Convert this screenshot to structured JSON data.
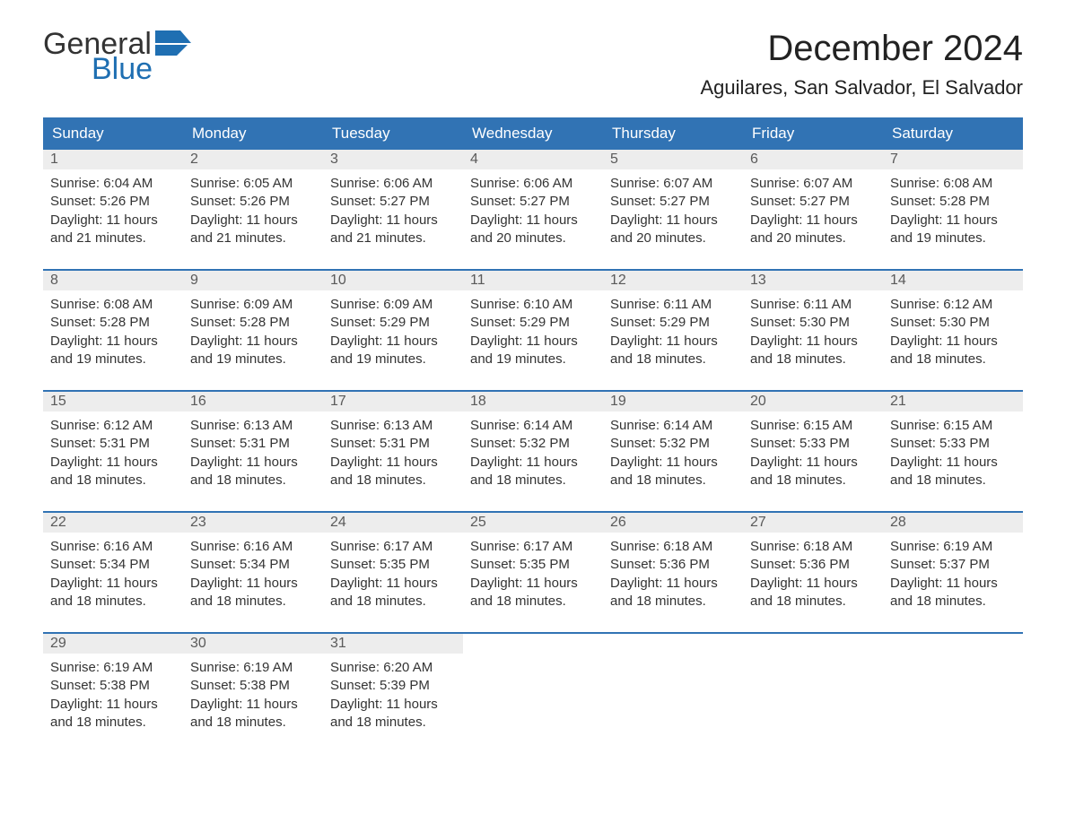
{
  "logo": {
    "text_general": "General",
    "text_blue": "Blue",
    "flag_color": "#1f6fb2"
  },
  "title": "December 2024",
  "location": "Aguilares, San Salvador, El Salvador",
  "calendar": {
    "columns": [
      "Sunday",
      "Monday",
      "Tuesday",
      "Wednesday",
      "Thursday",
      "Friday",
      "Saturday"
    ],
    "header_bg": "#3173b4",
    "header_fg": "#ffffff",
    "row_border_color": "#3173b4",
    "daynum_bg": "#ededed",
    "daynum_fg": "#5a5a5a",
    "text_color": "#333333",
    "sunrise_label": "Sunrise:",
    "sunset_label": "Sunset:",
    "daylight_label": "Daylight:",
    "days": [
      {
        "n": "1",
        "sunrise": "6:04 AM",
        "sunset": "5:26 PM",
        "daylight": "11 hours and 21 minutes."
      },
      {
        "n": "2",
        "sunrise": "6:05 AM",
        "sunset": "5:26 PM",
        "daylight": "11 hours and 21 minutes."
      },
      {
        "n": "3",
        "sunrise": "6:06 AM",
        "sunset": "5:27 PM",
        "daylight": "11 hours and 21 minutes."
      },
      {
        "n": "4",
        "sunrise": "6:06 AM",
        "sunset": "5:27 PM",
        "daylight": "11 hours and 20 minutes."
      },
      {
        "n": "5",
        "sunrise": "6:07 AM",
        "sunset": "5:27 PM",
        "daylight": "11 hours and 20 minutes."
      },
      {
        "n": "6",
        "sunrise": "6:07 AM",
        "sunset": "5:27 PM",
        "daylight": "11 hours and 20 minutes."
      },
      {
        "n": "7",
        "sunrise": "6:08 AM",
        "sunset": "5:28 PM",
        "daylight": "11 hours and 19 minutes."
      },
      {
        "n": "8",
        "sunrise": "6:08 AM",
        "sunset": "5:28 PM",
        "daylight": "11 hours and 19 minutes."
      },
      {
        "n": "9",
        "sunrise": "6:09 AM",
        "sunset": "5:28 PM",
        "daylight": "11 hours and 19 minutes."
      },
      {
        "n": "10",
        "sunrise": "6:09 AM",
        "sunset": "5:29 PM",
        "daylight": "11 hours and 19 minutes."
      },
      {
        "n": "11",
        "sunrise": "6:10 AM",
        "sunset": "5:29 PM",
        "daylight": "11 hours and 19 minutes."
      },
      {
        "n": "12",
        "sunrise": "6:11 AM",
        "sunset": "5:29 PM",
        "daylight": "11 hours and 18 minutes."
      },
      {
        "n": "13",
        "sunrise": "6:11 AM",
        "sunset": "5:30 PM",
        "daylight": "11 hours and 18 minutes."
      },
      {
        "n": "14",
        "sunrise": "6:12 AM",
        "sunset": "5:30 PM",
        "daylight": "11 hours and 18 minutes."
      },
      {
        "n": "15",
        "sunrise": "6:12 AM",
        "sunset": "5:31 PM",
        "daylight": "11 hours and 18 minutes."
      },
      {
        "n": "16",
        "sunrise": "6:13 AM",
        "sunset": "5:31 PM",
        "daylight": "11 hours and 18 minutes."
      },
      {
        "n": "17",
        "sunrise": "6:13 AM",
        "sunset": "5:31 PM",
        "daylight": "11 hours and 18 minutes."
      },
      {
        "n": "18",
        "sunrise": "6:14 AM",
        "sunset": "5:32 PM",
        "daylight": "11 hours and 18 minutes."
      },
      {
        "n": "19",
        "sunrise": "6:14 AM",
        "sunset": "5:32 PM",
        "daylight": "11 hours and 18 minutes."
      },
      {
        "n": "20",
        "sunrise": "6:15 AM",
        "sunset": "5:33 PM",
        "daylight": "11 hours and 18 minutes."
      },
      {
        "n": "21",
        "sunrise": "6:15 AM",
        "sunset": "5:33 PM",
        "daylight": "11 hours and 18 minutes."
      },
      {
        "n": "22",
        "sunrise": "6:16 AM",
        "sunset": "5:34 PM",
        "daylight": "11 hours and 18 minutes."
      },
      {
        "n": "23",
        "sunrise": "6:16 AM",
        "sunset": "5:34 PM",
        "daylight": "11 hours and 18 minutes."
      },
      {
        "n": "24",
        "sunrise": "6:17 AM",
        "sunset": "5:35 PM",
        "daylight": "11 hours and 18 minutes."
      },
      {
        "n": "25",
        "sunrise": "6:17 AM",
        "sunset": "5:35 PM",
        "daylight": "11 hours and 18 minutes."
      },
      {
        "n": "26",
        "sunrise": "6:18 AM",
        "sunset": "5:36 PM",
        "daylight": "11 hours and 18 minutes."
      },
      {
        "n": "27",
        "sunrise": "6:18 AM",
        "sunset": "5:36 PM",
        "daylight": "11 hours and 18 minutes."
      },
      {
        "n": "28",
        "sunrise": "6:19 AM",
        "sunset": "5:37 PM",
        "daylight": "11 hours and 18 minutes."
      },
      {
        "n": "29",
        "sunrise": "6:19 AM",
        "sunset": "5:38 PM",
        "daylight": "11 hours and 18 minutes."
      },
      {
        "n": "30",
        "sunrise": "6:19 AM",
        "sunset": "5:38 PM",
        "daylight": "11 hours and 18 minutes."
      },
      {
        "n": "31",
        "sunrise": "6:20 AM",
        "sunset": "5:39 PM",
        "daylight": "11 hours and 18 minutes."
      }
    ]
  }
}
